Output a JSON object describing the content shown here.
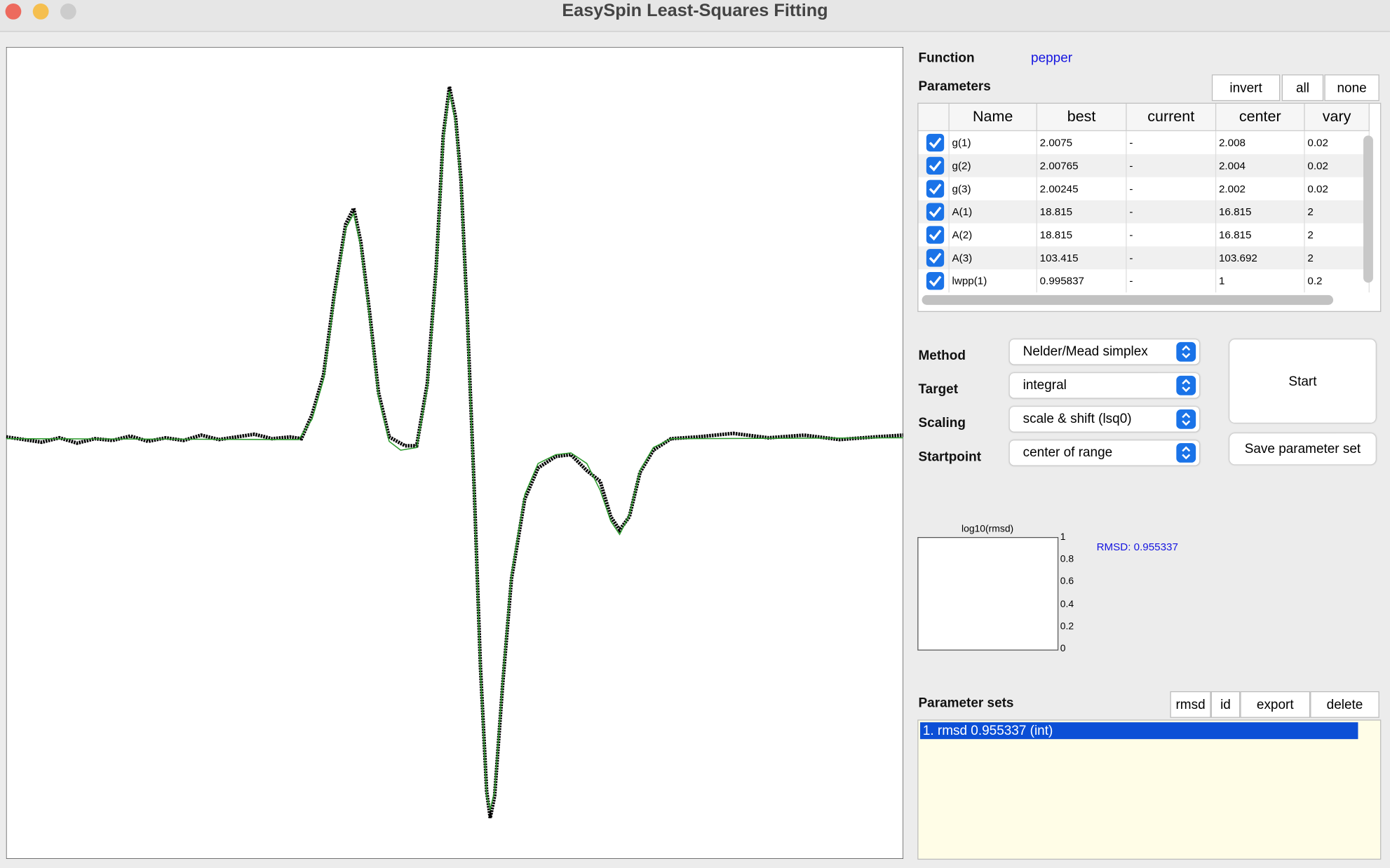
{
  "window_title": "EasySpin Least-Squares Fitting",
  "function": {
    "label": "Function",
    "value": "pepper"
  },
  "parameters": {
    "label": "Parameters",
    "buttons": [
      "invert",
      "all",
      "none"
    ],
    "columns": [
      "Name",
      "best",
      "current",
      "center",
      "vary"
    ],
    "rows": [
      [
        "g(1)",
        "2.0075",
        "-",
        "2.008",
        "0.02"
      ],
      [
        "g(2)",
        "2.00765",
        "-",
        "2.004",
        "0.02"
      ],
      [
        "g(3)",
        "2.00245",
        "-",
        "2.002",
        "0.02"
      ],
      [
        "A(1)",
        "18.815",
        "-",
        "16.815",
        "2"
      ],
      [
        "A(2)",
        "18.815",
        "-",
        "16.815",
        "2"
      ],
      [
        "A(3)",
        "103.415",
        "-",
        "103.692",
        "2"
      ],
      [
        "lwpp(1)",
        "0.995837",
        "-",
        "1",
        "0.2"
      ]
    ]
  },
  "settings": [
    {
      "label": "Method",
      "value": "Nelder/Mead simplex"
    },
    {
      "label": "Target",
      "value": "integral"
    },
    {
      "label": "Scaling",
      "value": "scale & shift (lsq0)"
    },
    {
      "label": "Startpoint",
      "value": "center of range"
    }
  ],
  "start_button": "Start",
  "save_button": "Save parameter set",
  "rmsd_plot": {
    "title": "log10(rmsd)",
    "ticks": [
      "1",
      "0.8",
      "0.6",
      "0.4",
      "0.2",
      "0"
    ]
  },
  "rmsd_text": "RMSD: 0.955337",
  "parameter_sets": {
    "label": "Parameter sets",
    "buttons": [
      "rmsd",
      "id",
      "export",
      "delete"
    ],
    "items": [
      "1. rmsd 0.955337 (int)"
    ]
  }
}
